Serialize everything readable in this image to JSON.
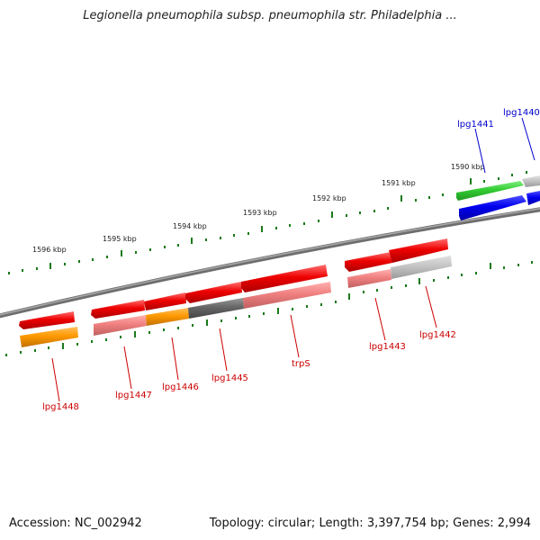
{
  "title": "Legionella pneumophila subsp. pneumophila str. Philadelphia ...",
  "footer": {
    "accession_label": "Accession:",
    "accession": "NC_002942",
    "topology_label": "Topology:",
    "topology": "circular",
    "length_label": "Length:",
    "length": "3,397,754 bp",
    "genes_label": "Genes:",
    "genes": "2,994"
  },
  "scale_labels": [
    "1596 kbp",
    "1595 kbp",
    "1594 kbp",
    "1593 kbp",
    "1592 kbp",
    "1591 kbp",
    "1590 kbp"
  ],
  "gene_labels": [
    {
      "text": "lpg1441",
      "color": "#0000cc"
    },
    {
      "text": "lpg1440",
      "color": "#0000cc"
    },
    {
      "text": "lpg1448",
      "color": "#cc0000"
    },
    {
      "text": "lpg1447",
      "color": "#cc0000"
    },
    {
      "text": "lpg1446",
      "color": "#cc0000"
    },
    {
      "text": "lpg1445",
      "color": "#cc0000"
    },
    {
      "text": "trpS",
      "color": "#cc0000"
    },
    {
      "text": "lpg1443",
      "color": "#cc0000"
    },
    {
      "text": "lpg1442",
      "color": "#cc0000"
    }
  ],
  "colors": {
    "backbone": "#808080",
    "tick": "#1a7a1a",
    "red": "#ee0000",
    "pink": "#f08080",
    "orange": "#ff9900",
    "gray": "#666666",
    "light_gray": "#c8c8c8",
    "green": "#33cc33",
    "blue": "#0000ee"
  }
}
